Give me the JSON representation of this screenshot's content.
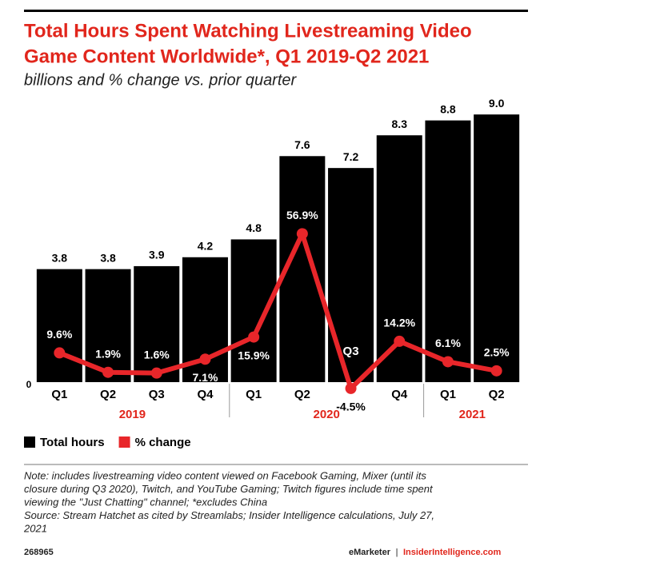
{
  "chart_data": {
    "type": "bar_line",
    "title": [
      "Total Hours Spent Watching Livestreaming Video",
      "Game Content Worldwide*, Q1 2019-Q2 2021"
    ],
    "subtitle": "billions and % change vs. prior quarter",
    "categories": [
      "Q1",
      "Q2",
      "Q3",
      "Q4",
      "Q1",
      "Q2",
      "Q3",
      "Q4",
      "Q1",
      "Q2"
    ],
    "groups": [
      "2019",
      "2020",
      "2021"
    ],
    "series": [
      {
        "name": "Total hours",
        "color": "#000000",
        "values": [
          3.8,
          3.8,
          3.9,
          4.2,
          4.8,
          7.6,
          7.2,
          8.3,
          8.8,
          9.0
        ],
        "value_labels": [
          "3.8",
          "3.8",
          "3.9",
          "4.2",
          "4.8",
          "7.6",
          "7.2",
          "8.3",
          "8.8",
          "9.0"
        ]
      },
      {
        "name": "% change",
        "color": "#e8262a",
        "axis": "y2",
        "values": [
          9.6,
          1.9,
          1.6,
          7.1,
          15.9,
          56.9,
          -4.5,
          14.2,
          6.1,
          2.5
        ],
        "value_labels": [
          "9.6%",
          "1.9%",
          "1.6%",
          "7.1%",
          "15.9%",
          "56.9%",
          "-4.5%",
          "14.2%",
          "6.1%",
          "2.5%"
        ]
      }
    ],
    "ylim": [
      0,
      10
    ],
    "yticks": [
      0
    ],
    "y2lim": [
      -2,
      116
    ],
    "note": [
      "Note: includes livestreaming video content viewed on Facebook Gaming, Mixer (until its",
      "closure during Q3 2020), Twitch, and YouTube Gaming; Twitch figures include time spent",
      "viewing the \"Just Chatting\" channel; *excludes China",
      "Source: Stream Hatchet as cited by Streamlabs; Insider Intelligence calculations, July 27,",
      "2021"
    ],
    "footer": {
      "id": "268965",
      "brand": "eMarketer",
      "separator": "|",
      "site": "InsiderIntelligence.com"
    }
  }
}
